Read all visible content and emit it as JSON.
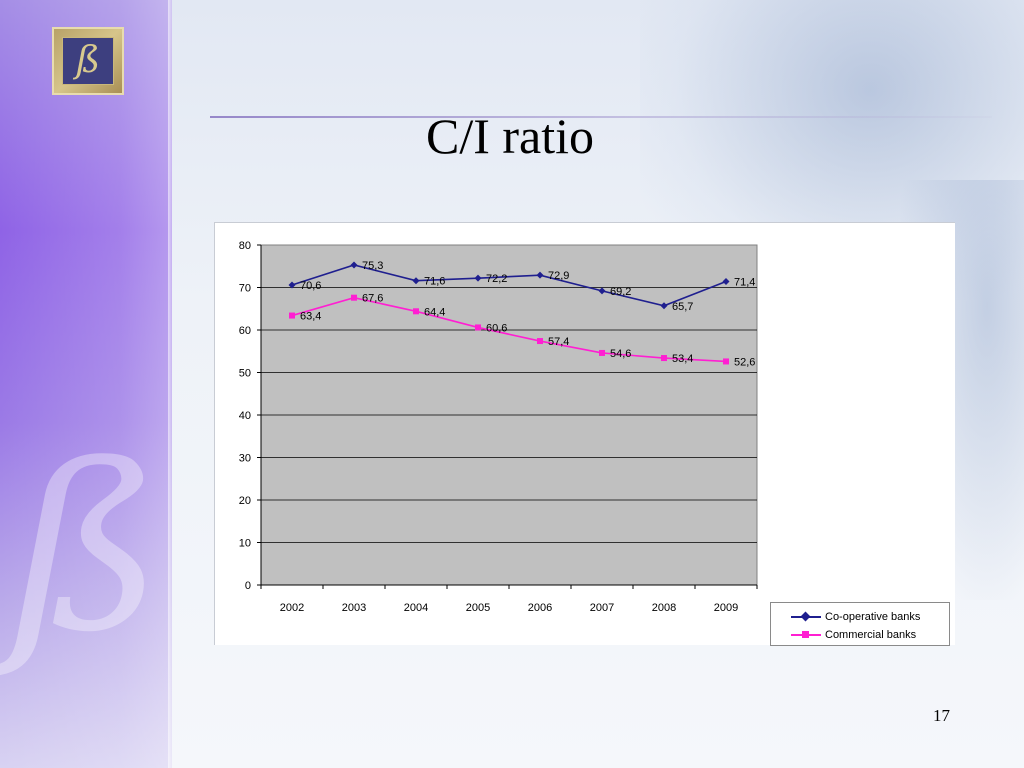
{
  "slide": {
    "title": "C/I ratio",
    "page_number": "17",
    "logo_glyph": "ß",
    "colors": {
      "sidebar": "#8f63e6",
      "plot_background": "#c0c0c0",
      "cooperative": "#1f1f8f",
      "commercial": "#ff1fd2"
    }
  },
  "chart_data": {
    "type": "line",
    "title": "",
    "xlabel": "",
    "ylabel": "",
    "categories": [
      "2002",
      "2003",
      "2004",
      "2005",
      "2006",
      "2007",
      "2008",
      "2009"
    ],
    "ylim": [
      0,
      80
    ],
    "yticks": [
      "0",
      "10",
      "20",
      "30",
      "40",
      "50",
      "60",
      "70",
      "80"
    ],
    "grid": true,
    "legend_position": "bottom-right",
    "series": [
      {
        "name": "Co-operative banks",
        "color": "#1f1f8f",
        "marker": "diamond",
        "values": [
          70.6,
          75.3,
          71.6,
          72.2,
          72.9,
          69.2,
          65.7,
          71.4
        ],
        "labels": [
          "70,6",
          "75,3",
          "71,6",
          "72,2",
          "72,9",
          "69,2",
          "65,7",
          "71,4"
        ]
      },
      {
        "name": "Commercial banks",
        "color": "#ff1fd2",
        "marker": "square",
        "values": [
          63.4,
          67.6,
          64.4,
          60.6,
          57.4,
          54.6,
          53.4,
          52.6
        ],
        "labels": [
          "63,4",
          "67,6",
          "64,4",
          "60,6",
          "57,4",
          "54,6",
          "53,4",
          "52,6"
        ]
      }
    ]
  }
}
